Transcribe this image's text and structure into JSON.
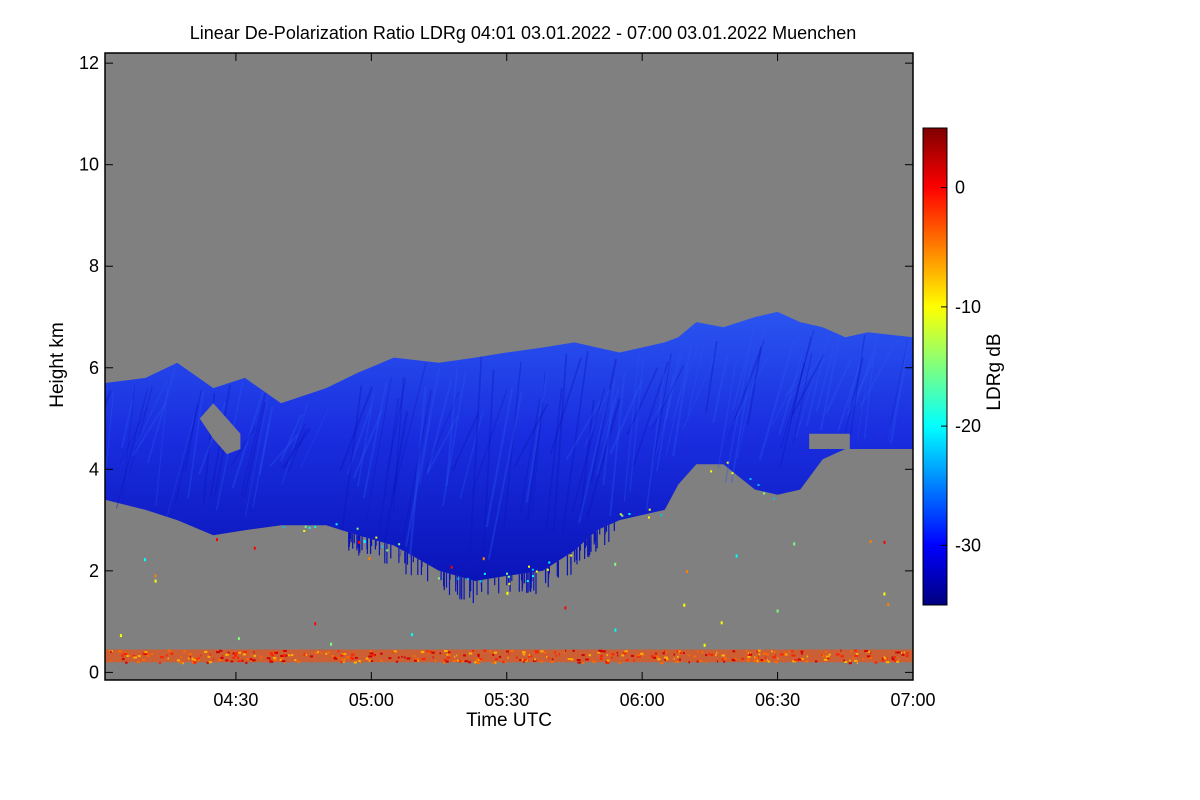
{
  "chart_data": {
    "type": "heatmap",
    "title": "Linear De-Polarization Ratio LDRg   04:01 03.01.2022 - 07:00 03.01.2022 Muenchen",
    "xlabel": "Time UTC",
    "ylabel": "Height km",
    "x_range_minutes_utc": [
      241,
      420
    ],
    "x_ticks": [
      {
        "minutes": 270,
        "label": "04:30"
      },
      {
        "minutes": 300,
        "label": "05:00"
      },
      {
        "minutes": 330,
        "label": "05:30"
      },
      {
        "minutes": 360,
        "label": "06:00"
      },
      {
        "minutes": 390,
        "label": "06:30"
      },
      {
        "minutes": 420,
        "label": "07:00"
      }
    ],
    "ylim": [
      -0.15,
      12.2
    ],
    "y_ticks": [
      {
        "value": 0,
        "label": "0"
      },
      {
        "value": 2,
        "label": "2"
      },
      {
        "value": 4,
        "label": "4"
      },
      {
        "value": 6,
        "label": "6"
      },
      {
        "value": 8,
        "label": "8"
      },
      {
        "value": 10,
        "label": "10"
      },
      {
        "value": 12,
        "label": "12"
      }
    ],
    "colorbar": {
      "label": "LDRg dB",
      "range": [
        -35,
        5
      ],
      "ticks": [
        {
          "value": 0,
          "label": "0"
        },
        {
          "value": -10,
          "label": "-10"
        },
        {
          "value": -20,
          "label": "-20"
        },
        {
          "value": -30,
          "label": "-30"
        }
      ],
      "colors": [
        "#00007f",
        "#0000ff",
        "#007fff",
        "#00ffff",
        "#7fff7f",
        "#ffff00",
        "#ff7f00",
        "#ff0000",
        "#7f0000"
      ]
    },
    "background_color": "#808080",
    "cloud_layer": {
      "ldr_db": -32,
      "color_main": "#1a2ee0",
      "color_dark": "#0a14b8",
      "color_upper": "#2a55f0",
      "profile": [
        {
          "t": 241,
          "top": 5.7,
          "base": 3.4
        },
        {
          "t": 250,
          "top": 5.8,
          "base": 3.2
        },
        {
          "t": 257,
          "top": 6.1,
          "base": 3.0
        },
        {
          "t": 265,
          "top": 5.6,
          "base": 2.7
        },
        {
          "t": 272,
          "top": 5.8,
          "base": 2.8
        },
        {
          "t": 280,
          "top": 5.3,
          "base": 2.9
        },
        {
          "t": 290,
          "top": 5.6,
          "base": 2.9
        },
        {
          "t": 297,
          "top": 5.9,
          "base": 2.7
        },
        {
          "t": 305,
          "top": 6.2,
          "base": 2.5
        },
        {
          "t": 315,
          "top": 6.1,
          "base": 2.0
        },
        {
          "t": 323,
          "top": 6.2,
          "base": 1.8
        },
        {
          "t": 330,
          "top": 6.3,
          "base": 1.9
        },
        {
          "t": 338,
          "top": 6.4,
          "base": 2.0
        },
        {
          "t": 345,
          "top": 6.5,
          "base": 2.4
        },
        {
          "t": 350,
          "top": 6.4,
          "base": 2.8
        },
        {
          "t": 355,
          "top": 6.3,
          "base": 3.0
        },
        {
          "t": 360,
          "top": 6.4,
          "base": 3.1
        },
        {
          "t": 365,
          "top": 6.5,
          "base": 3.2
        },
        {
          "t": 368,
          "top": 6.6,
          "base": 3.7
        },
        {
          "t": 372,
          "top": 6.9,
          "base": 4.1
        },
        {
          "t": 378,
          "top": 6.8,
          "base": 4.1
        },
        {
          "t": 385,
          "top": 7.0,
          "base": 3.6
        },
        {
          "t": 390,
          "top": 7.1,
          "base": 3.5
        },
        {
          "t": 395,
          "top": 6.9,
          "base": 3.6
        },
        {
          "t": 400,
          "top": 6.8,
          "base": 4.2
        },
        {
          "t": 405,
          "top": 6.6,
          "base": 4.4
        },
        {
          "t": 410,
          "top": 6.7,
          "base": 4.4
        },
        {
          "t": 420,
          "top": 6.6,
          "base": 4.4
        }
      ],
      "gap": [
        {
          "t": 262,
          "top": 5.0,
          "base": 5.0
        },
        {
          "t": 265,
          "top": 5.3,
          "base": 4.6
        },
        {
          "t": 268,
          "top": 5.0,
          "base": 4.3
        },
        {
          "t": 271,
          "top": 4.7,
          "base": 4.4
        }
      ],
      "holes": [
        {
          "t0": 397,
          "t1": 406,
          "top": 4.7,
          "base": 4.4
        }
      ]
    },
    "surface_layer": {
      "height_range": [
        0.2,
        0.45
      ],
      "ldr_db_range": [
        -5,
        5
      ],
      "colors": [
        "#ff2200",
        "#ff6a00",
        "#ffb000",
        "#d40000"
      ]
    }
  }
}
